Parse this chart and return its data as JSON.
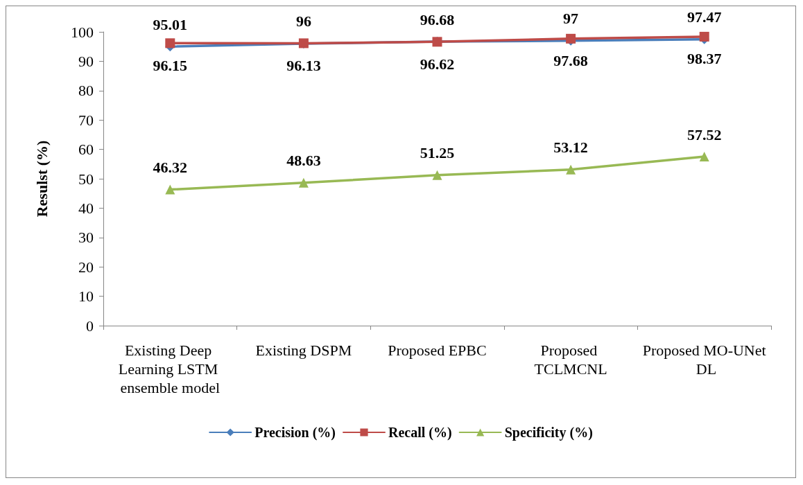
{
  "chart_data": {
    "type": "line",
    "ylabel": "Resulst (%)",
    "categories": [
      "Existing Deep Learning LSTM ensemble model",
      "Existing DSPM",
      "Proposed EPBC",
      "Proposed TCLMCNL",
      "Proposed MO-UNet DL"
    ],
    "series": [
      {
        "name": "Precision (%)",
        "color": "#4a7ebb",
        "marker": "diamond",
        "values": [
          95.01,
          96,
          96.68,
          97,
          97.47
        ]
      },
      {
        "name": "Recall (%)",
        "color": "#be4b48",
        "marker": "square",
        "values": [
          96.15,
          96.13,
          96.62,
          97.68,
          98.37
        ]
      },
      {
        "name": "Specificity (%)",
        "color": "#98b954",
        "marker": "triangle",
        "values": [
          46.32,
          48.63,
          51.25,
          53.12,
          57.52
        ]
      }
    ],
    "ylim": [
      0,
      100
    ],
    "yticks": [
      0,
      10,
      20,
      30,
      40,
      50,
      60,
      70,
      80,
      90,
      100
    ],
    "grid": false,
    "legend": "bottom",
    "data_labels": true,
    "line_style": "solid"
  }
}
